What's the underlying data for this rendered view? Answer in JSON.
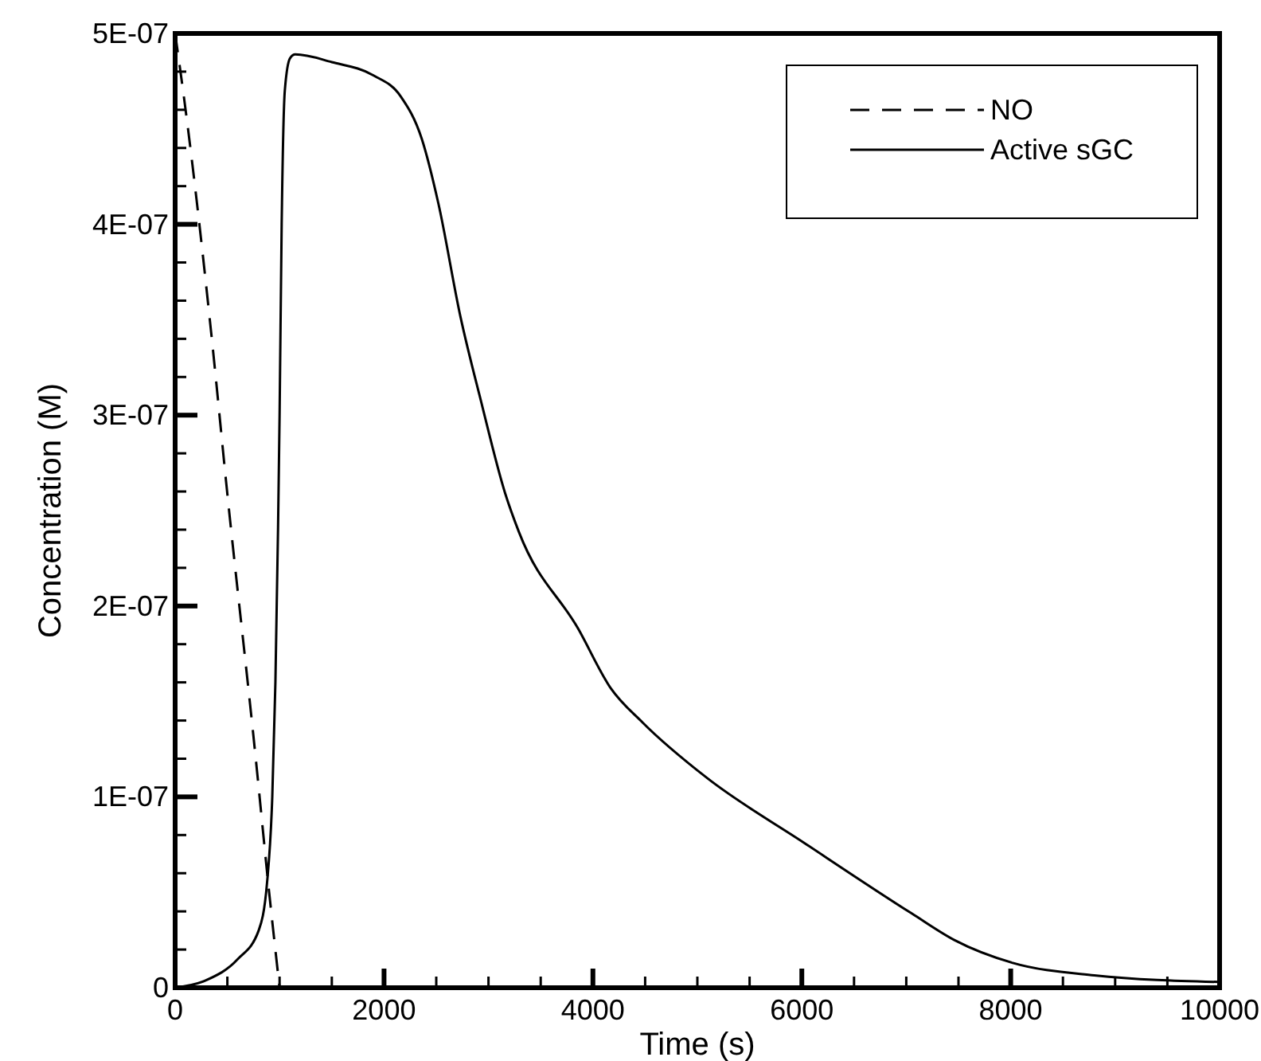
{
  "chart_data": {
    "type": "line",
    "xlabel": "Time (s)",
    "ylabel": "Concentration (M)",
    "xlim": [
      0,
      10000
    ],
    "ylim": [
      0,
      5e-07
    ],
    "xticks": [
      0,
      {
        "value": 500,
        "label": null
      },
      2000,
      {
        "value": 1000,
        "label": null
      },
      {
        "value": 1500,
        "label": null
      },
      {
        "value": 2500,
        "label": null
      },
      {
        "value": 3000,
        "label": null
      },
      {
        "value": 3500,
        "label": null
      },
      4000,
      {
        "value": 4500,
        "label": null
      },
      {
        "value": 5000,
        "label": null
      },
      {
        "value": 5500,
        "label": null
      },
      6000,
      {
        "value": 6500,
        "label": null
      },
      {
        "value": 7000,
        "label": null
      },
      {
        "value": 7500,
        "label": null
      },
      8000,
      {
        "value": 8500,
        "label": null
      },
      {
        "value": 9000,
        "label": null
      },
      {
        "value": 9500,
        "label": null
      },
      10000
    ],
    "yticks": [
      {
        "value": 0,
        "label": "0"
      },
      {
        "value": 2e-08,
        "label": null
      },
      {
        "value": 4e-08,
        "label": null
      },
      {
        "value": 6e-08,
        "label": null
      },
      {
        "value": 8e-08,
        "label": null
      },
      {
        "value": 1e-07,
        "label": "1E-07"
      },
      {
        "value": 1.2e-07,
        "label": null
      },
      {
        "value": 1.4e-07,
        "label": null
      },
      {
        "value": 1.6e-07,
        "label": null
      },
      {
        "value": 1.8e-07,
        "label": null
      },
      {
        "value": 2e-07,
        "label": "2E-07"
      },
      {
        "value": 2.2e-07,
        "label": null
      },
      {
        "value": 2.4e-07,
        "label": null
      },
      {
        "value": 2.6e-07,
        "label": null
      },
      {
        "value": 2.8e-07,
        "label": null
      },
      {
        "value": 3e-07,
        "label": "3E-07"
      },
      {
        "value": 3.2e-07,
        "label": null
      },
      {
        "value": 3.4e-07,
        "label": null
      },
      {
        "value": 3.6e-07,
        "label": null
      },
      {
        "value": 3.8e-07,
        "label": null
      },
      {
        "value": 4e-07,
        "label": "4E-07"
      },
      {
        "value": 4.2e-07,
        "label": null
      },
      {
        "value": 4.4e-07,
        "label": null
      },
      {
        "value": 4.6e-07,
        "label": null
      },
      {
        "value": 4.8e-07,
        "label": null
      },
      {
        "value": 5e-07,
        "label": "5E-07"
      }
    ],
    "legend": "top right",
    "grid": false,
    "series": [
      {
        "name": "NO",
        "color": "#000000",
        "line_style": "dashed",
        "x": [
          0,
          100,
          355,
          490,
          772,
          900,
          1000
        ],
        "values": [
          5e-07,
          4.6e-07,
          3.38e-07,
          2.64e-07,
          1.2e-07,
          5e-08,
          0
        ]
      },
      {
        "name": "Active sGC",
        "color": "#000000",
        "line_style": "solid",
        "x": [
          0,
          300,
          600,
          800,
          880,
          930,
          960,
          985,
          1000,
          1020,
          1050,
          1100,
          1150,
          1500,
          1900,
          2160,
          2360,
          2520,
          2730,
          2930,
          3160,
          3290,
          3860,
          4170,
          4475,
          5090,
          6020,
          7050,
          7460,
          8020,
          8800,
          10000
        ],
        "values": [
          0,
          4e-09,
          1.5e-08,
          3e-08,
          5.5e-08,
          1e-07,
          1.6e-07,
          2.4e-07,
          3e-07,
          4e-07,
          4.7e-07,
          4.87e-07,
          4.89e-07,
          4.85e-07,
          4.78e-07,
          4.67e-07,
          4.45e-07,
          4.11e-07,
          3.52e-07,
          3.07e-07,
          2.59e-07,
          2.39e-07,
          1.88e-07,
          1.57e-07,
          1.39e-07,
          1.1e-07,
          7.6e-08,
          3.9e-08,
          2.5e-08,
          1.3e-08,
          6.5e-09,
          3e-09
        ]
      }
    ]
  }
}
